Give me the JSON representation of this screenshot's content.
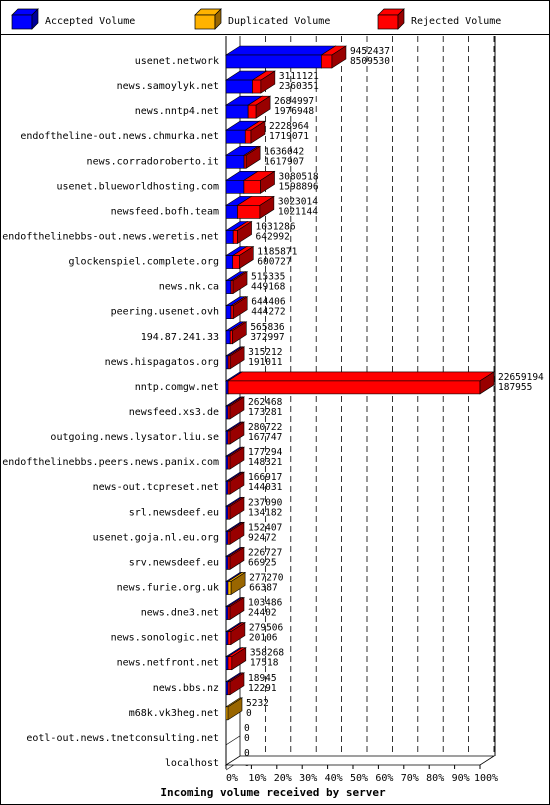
{
  "chart_data": {
    "type": "bar",
    "orientation": "horizontal",
    "stacked": "overlaid 3D bars",
    "xlabel": "Incoming volume received by server",
    "x_ticks": [
      "0%",
      "10%",
      "20%",
      "30%",
      "40%",
      "50%",
      "60%",
      "70%",
      "80%",
      "90%",
      "100%"
    ],
    "xlim": [
      0,
      22659194
    ],
    "legend": [
      {
        "name": "Accepted Volume",
        "color": "#0000ff",
        "accent": "#000099"
      },
      {
        "name": "Duplicated Volume",
        "color": "#ffb300",
        "accent": "#996600"
      },
      {
        "name": "Rejected Volume",
        "color": "#ff0000",
        "accent": "#990000"
      }
    ],
    "legend_position": "top",
    "categories": [
      "usenet.network",
      "news.samoylyk.net",
      "news.nntp4.net",
      "endoftheline-out.news.chmurka.net",
      "news.corradoroberto.it",
      "usenet.blueworldhosting.com",
      "newsfeed.bofh.team",
      "endofthelinebbs-out.news.weretis.net",
      "glockenspiel.complete.org",
      "news.nk.ca",
      "peering.usenet.ovh",
      "194.87.241.33",
      "news.hispagatos.org",
      "nntp.comgw.net",
      "newsfeed.xs3.de",
      "outgoing.news.lysator.liu.se",
      "endofthelinebbs.peers.news.panix.com",
      "news-out.tcpreset.net",
      "srl.newsdeef.eu",
      "usenet.goja.nl.eu.org",
      "srv.newsdeef.eu",
      "news.furie.org.uk",
      "news.dne3.net",
      "news.sonologic.net",
      "news.netfront.net",
      "news.bbs.nz",
      "m68k.vk3heg.net",
      "eotl-out.news.tnetconsulting.net",
      "localhost"
    ],
    "total_labels": [
      "9452437",
      "3111121",
      "2684997",
      "2228964",
      "1636042",
      "3080518",
      "3023014",
      "1031286",
      "1185871",
      "515335",
      "644406",
      "565836",
      "315212",
      "22659194",
      "262468",
      "280722",
      "177294",
      "166917",
      "237090",
      "152407",
      "226727",
      "277270",
      "103486",
      "279506",
      "358268",
      "18945",
      "5232",
      "0",
      "0"
    ],
    "accepted_labels": [
      "8509530",
      "2360351",
      "1976948",
      "1719071",
      "1617907",
      "1598896",
      "1021144",
      "642992",
      "600727",
      "449168",
      "444272",
      "372997",
      "191011",
      "187955",
      "173281",
      "167747",
      "148321",
      "144031",
      "134182",
      "92472",
      "66925",
      "66387",
      "24402",
      "20106",
      "17518",
      "12291",
      "0",
      "0",
      "0"
    ],
    "total": [
      9452437,
      3111121,
      2684997,
      2228964,
      1636042,
      3080518,
      3023014,
      1031286,
      1185871,
      515335,
      644406,
      565836,
      315212,
      22659194,
      262468,
      280722,
      177294,
      166917,
      237090,
      152407,
      226727,
      277270,
      103486,
      279506,
      358268,
      18945,
      5232,
      0,
      0
    ],
    "accepted": [
      8509530,
      2360351,
      1976948,
      1719071,
      1617907,
      1598896,
      1021144,
      642992,
      600727,
      449168,
      444272,
      372997,
      191011,
      187955,
      173281,
      167747,
      148321,
      144031,
      134182,
      92472,
      66925,
      66387,
      24402,
      20106,
      17518,
      12291,
      0,
      0,
      0
    ],
    "duplicated": [
      0,
      0,
      0,
      0,
      0,
      0,
      0,
      0,
      0,
      0,
      0,
      0,
      0,
      0,
      0,
      0,
      0,
      0,
      0,
      0,
      0,
      277270,
      0,
      0,
      0,
      0,
      5232,
      0,
      0
    ],
    "rejected": [
      942907,
      750770,
      708049,
      509893,
      18135,
      1481622,
      2001870,
      388294,
      585144,
      66167,
      200134,
      192839,
      124201,
      22471239,
      89187,
      112975,
      28973,
      22886,
      102908,
      59935,
      159802,
      0,
      79084,
      259400,
      340750,
      6654,
      0,
      0,
      0
    ]
  }
}
